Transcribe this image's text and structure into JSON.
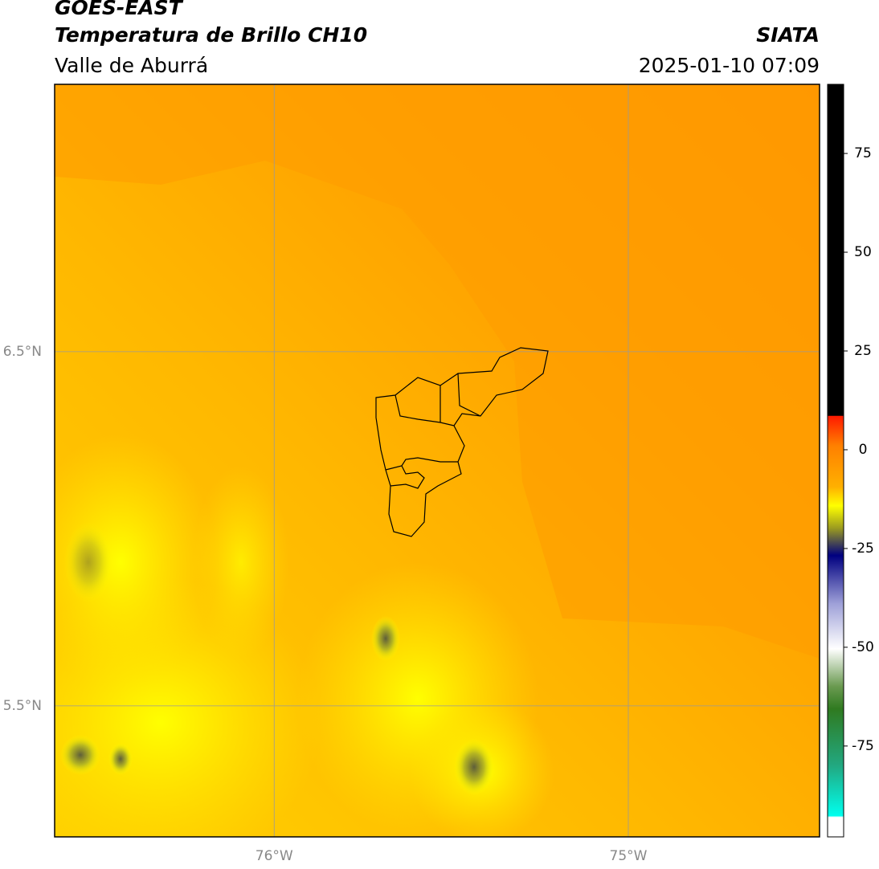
{
  "header": {
    "title": "GOES-EAST",
    "subtitle": "Temperatura de Brillo CH10",
    "region": "Valle de Aburrá",
    "source": "SIATA",
    "datetime": "2025-01-10 07:09"
  },
  "map": {
    "xlim": [
      -76.62,
      -74.46
    ],
    "ylim": [
      5.13,
      7.255
    ],
    "xticks": [
      {
        "value": -76,
        "label": "76°W"
      },
      {
        "value": -75,
        "label": "75°W"
      }
    ],
    "yticks": [
      {
        "value": 6.5,
        "label": "6.5°N"
      },
      {
        "value": 5.5,
        "label": "5.5°N"
      }
    ],
    "grid": true
  },
  "colorbar": {
    "lim": [
      -98,
      92.5
    ],
    "ticks": [
      75,
      50,
      25,
      0,
      -25,
      -50,
      -75
    ]
  }
}
